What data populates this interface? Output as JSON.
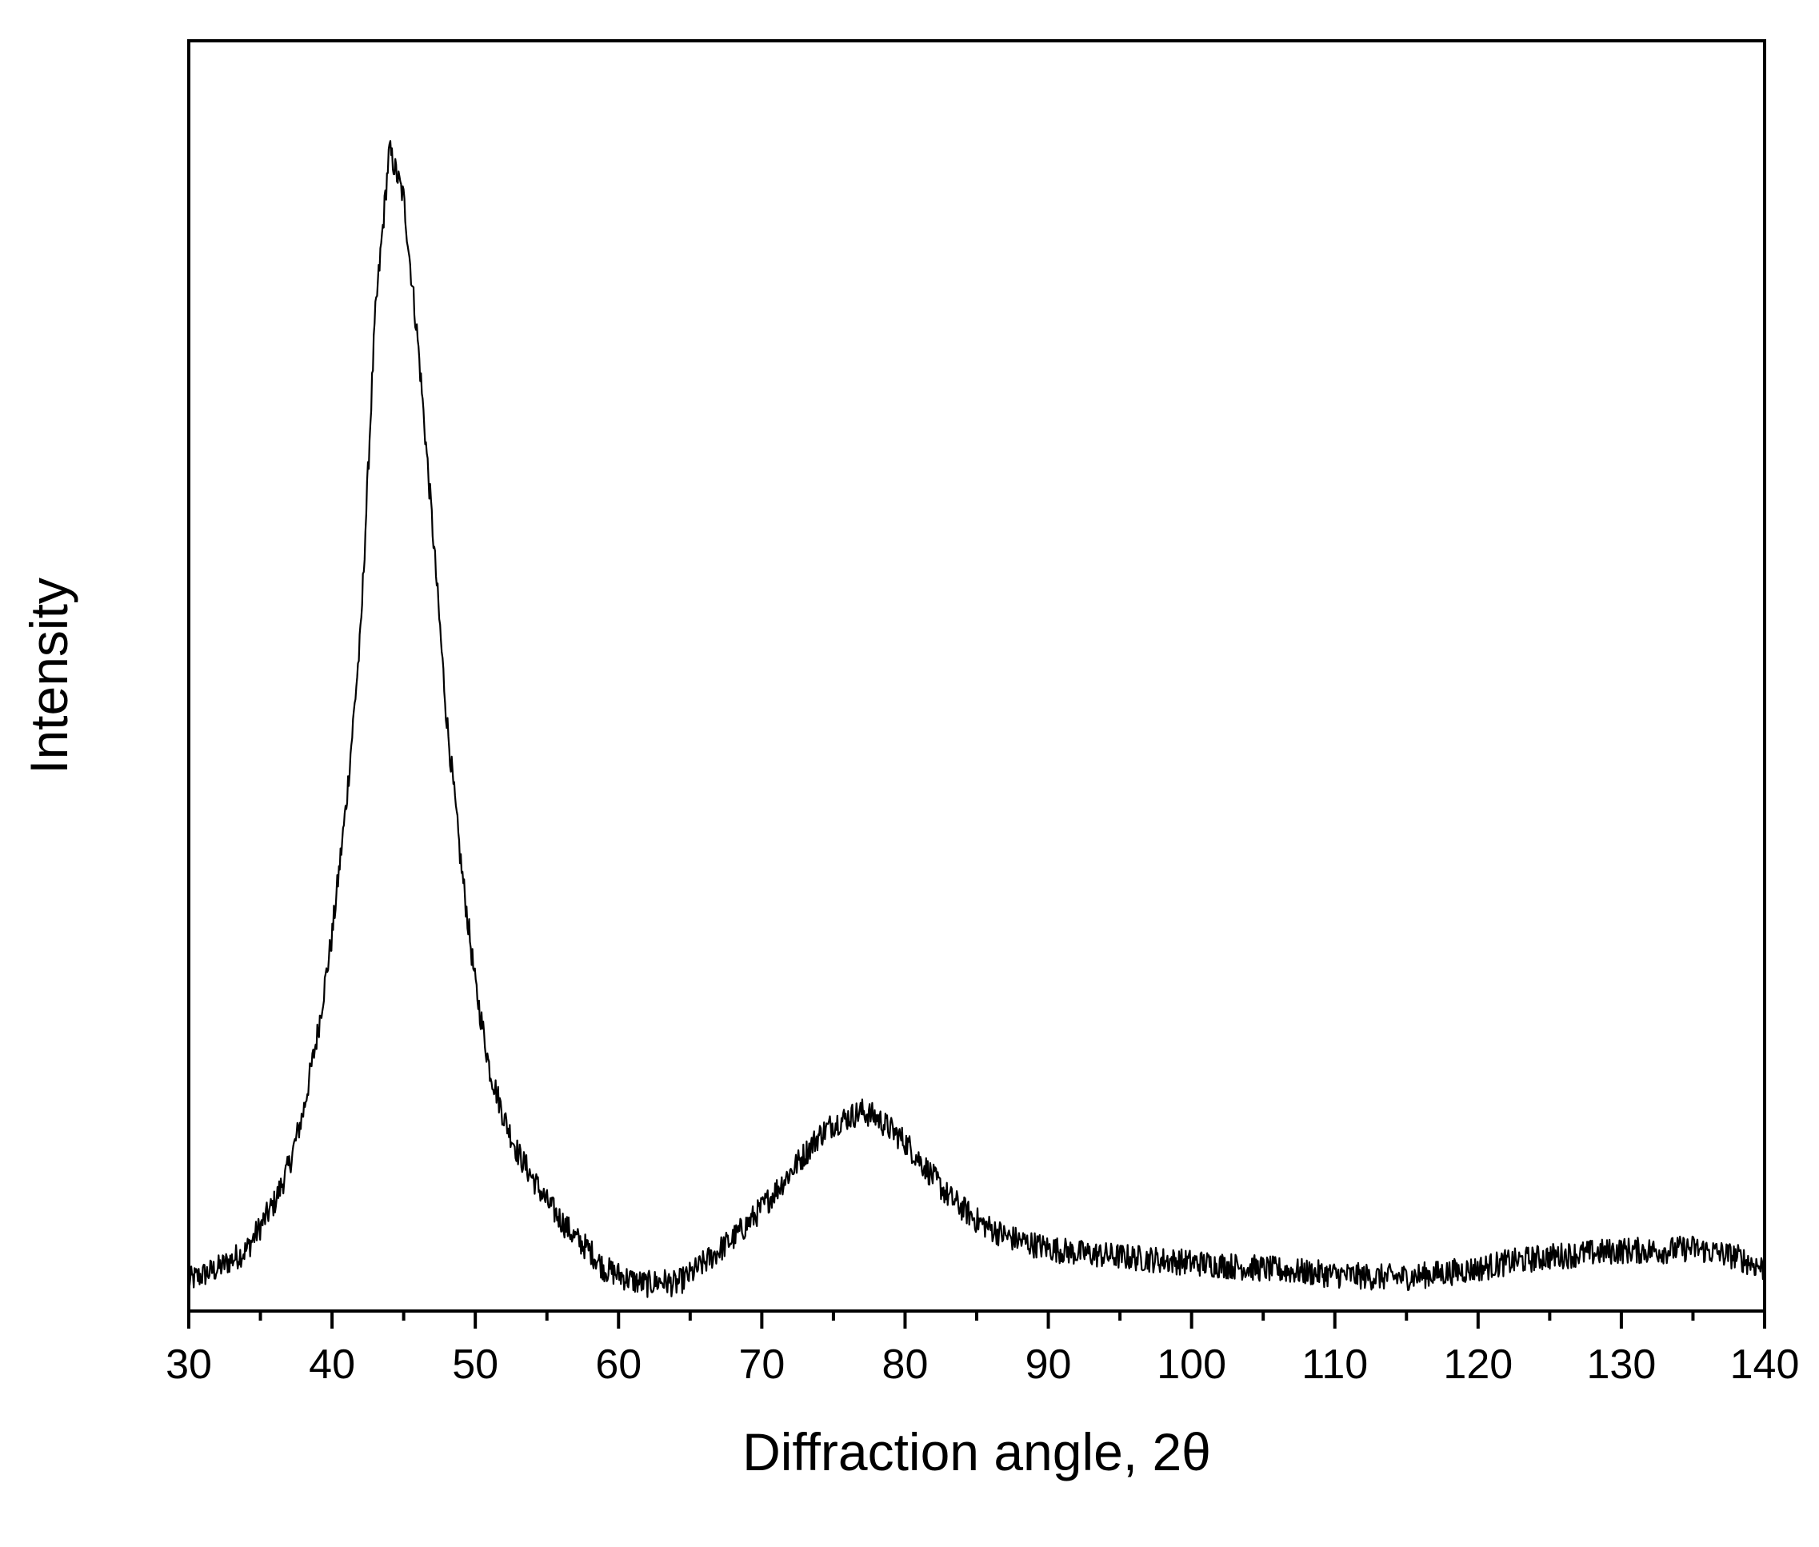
{
  "chart_data": {
    "type": "line",
    "title": "",
    "xlabel": "Diffraction angle, 2θ",
    "ylabel": "Intensity",
    "xlim": [
      30,
      140
    ],
    "ylim": [
      0,
      1.05
    ],
    "x_ticks": [
      "30",
      "40",
      "50",
      "60",
      "70",
      "80",
      "90",
      "100",
      "110",
      "120",
      "130",
      "140"
    ],
    "x_minor_step": 5,
    "y_ticks": [],
    "grid": false,
    "legend": "none",
    "line_color": "#000000",
    "series": [
      {
        "x": [
          30,
          32,
          34,
          36,
          37,
          38,
          39,
          40,
          41,
          42,
          43,
          44,
          45,
          46,
          47,
          48,
          49,
          50,
          51,
          52,
          53,
          54,
          55,
          56,
          57,
          58,
          59,
          60,
          61,
          62,
          63,
          64,
          65,
          66,
          67,
          68,
          69,
          70,
          71,
          72,
          73,
          74,
          75,
          76,
          77,
          78,
          79,
          80,
          81,
          82,
          83,
          84,
          85,
          86,
          87,
          88,
          90,
          92,
          95,
          100,
          105,
          110,
          113,
          115,
          118,
          120,
          122,
          125,
          128,
          130,
          133,
          135,
          138,
          140
        ],
        "y": [
          0.025,
          0.035,
          0.05,
          0.09,
          0.12,
          0.165,
          0.23,
          0.31,
          0.42,
          0.56,
          0.82,
          0.96,
          0.92,
          0.8,
          0.65,
          0.49,
          0.37,
          0.27,
          0.2,
          0.16,
          0.13,
          0.11,
          0.09,
          0.075,
          0.06,
          0.05,
          0.035,
          0.03,
          0.025,
          0.022,
          0.025,
          0.022,
          0.03,
          0.04,
          0.05,
          0.06,
          0.072,
          0.085,
          0.1,
          0.115,
          0.13,
          0.145,
          0.155,
          0.16,
          0.165,
          0.16,
          0.15,
          0.14,
          0.125,
          0.11,
          0.095,
          0.085,
          0.075,
          0.068,
          0.062,
          0.058,
          0.052,
          0.048,
          0.045,
          0.04,
          0.035,
          0.03,
          0.028,
          0.028,
          0.032,
          0.035,
          0.04,
          0.045,
          0.048,
          0.05,
          0.05,
          0.052,
          0.045,
          0.035
        ]
      }
    ]
  }
}
